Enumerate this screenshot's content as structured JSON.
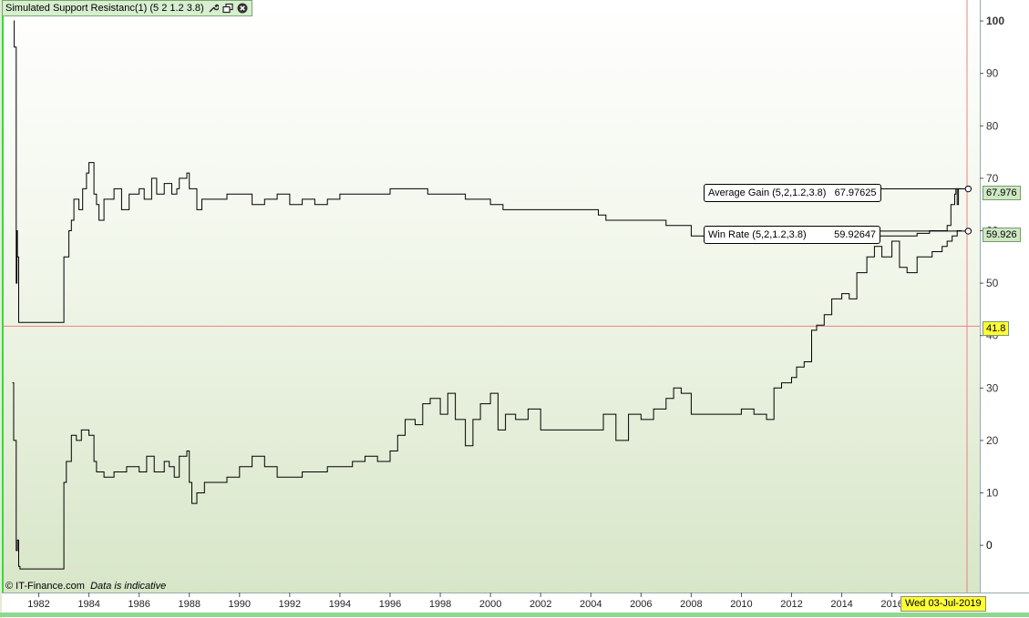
{
  "window": {
    "title": "Simulated Support Resistanc(1) (5 2 1.2 3.8)",
    "icons": [
      "wrench-icon",
      "restore-window-icon",
      "close-icon"
    ]
  },
  "credit": {
    "source": "© IT-Finance.com",
    "note": "Data is indicative"
  },
  "cursor_date": "Wed 03-Jul-2019",
  "price_level_badge": "41.8",
  "callouts": {
    "average_gain": {
      "label": "Average Gain (5,2,1.2,3.8)",
      "value": "67.97625"
    },
    "win_rate": {
      "label": "Win Rate (5,2,1.2,3.8)",
      "value": "59.92647"
    }
  },
  "badges": {
    "average_gain": "67.976",
    "win_rate": "59.926"
  },
  "colors": {
    "series": "#000000",
    "crosshair": "#f08080",
    "badge_yellow": "#ffff33",
    "badge_green": "#cfe8c4",
    "frame_green": "#3fd43f"
  },
  "chart_data": {
    "type": "line",
    "title": "Simulated Support Resistanc(1) (5 2 1.2 3.8)",
    "x_ticks": [
      "1982",
      "1984",
      "1986",
      "1988",
      "1990",
      "1992",
      "1994",
      "1996",
      "1998",
      "2000",
      "2002",
      "2004",
      "2006",
      "2008",
      "2010",
      "2012",
      "2014",
      "2016"
    ],
    "y_ticks": [
      "100",
      "90",
      "80",
      "70",
      "60",
      "50",
      "40",
      "30",
      "20",
      "10",
      "0"
    ],
    "ylim": [
      -9,
      104
    ],
    "xlim": [
      1980.6,
      2019.5
    ],
    "crosshair": {
      "x": 2019.5,
      "y": 41.8
    },
    "grid": false,
    "series": [
      {
        "name": "Average Gain (5,2,1.2,3.8)",
        "x": [
          1981.0,
          1981.02,
          1981.1,
          1981.13,
          1981.15,
          1981.2,
          1982.9,
          1983.0,
          1983.2,
          1983.3,
          1983.4,
          1983.6,
          1983.75,
          1983.9,
          1984.0,
          1984.2,
          1984.3,
          1984.4,
          1984.6,
          1985.0,
          1985.3,
          1985.6,
          1986.0,
          1986.2,
          1986.5,
          1986.7,
          1987.0,
          1987.3,
          1987.5,
          1987.6,
          1987.9,
          1988.0,
          1988.3,
          1988.5,
          1989.0,
          1989.5,
          1990.0,
          1990.5,
          1991.0,
          1991.5,
          1992.0,
          1992.5,
          1993.0,
          1993.5,
          1994.0,
          1995.0,
          1996.0,
          1996.5,
          1997.0,
          1997.5,
          1998.0,
          1999.0,
          2000.0,
          2000.5,
          2001.0,
          2001.5,
          2002.0,
          2003.0,
          2004.0,
          2004.3,
          2004.6,
          2005.0,
          2006.0,
          2007.0,
          2007.6,
          2008.0,
          2008.3,
          2009.0,
          2010.0,
          2011.0,
          2012.0,
          2013.0,
          2014.0,
          2015.0,
          2016.0,
          2017.0,
          2017.5,
          2018.0,
          2018.2,
          2018.35,
          2018.5,
          2018.55,
          2018.6,
          2018.65,
          2018.75
        ],
        "y": [
          100,
          95,
          50,
          60,
          55,
          42.5,
          42.5,
          55,
          60,
          62,
          66,
          64,
          68,
          71,
          73,
          67,
          65,
          62,
          66,
          68,
          64,
          67,
          68,
          66,
          70,
          67,
          69,
          67,
          68,
          70,
          71,
          68,
          64,
          66,
          66,
          67,
          67,
          65,
          66,
          67,
          65,
          66,
          65,
          66,
          67,
          67,
          68,
          68,
          68,
          67,
          67,
          66,
          65,
          64,
          64,
          64,
          64,
          64,
          64,
          63,
          62,
          62,
          62,
          61,
          61,
          59,
          59,
          59,
          58.5,
          58.5,
          58.5,
          58.5,
          58.5,
          59,
          59,
          59.5,
          60,
          60,
          61,
          65,
          67,
          68,
          65,
          68,
          67.976
        ]
      },
      {
        "name": "Win Rate (5,2,1.2,3.8)",
        "x": [
          1980.95,
          1981.0,
          1981.1,
          1981.15,
          1981.2,
          1981.25,
          1981.3,
          1982.9,
          1983.0,
          1983.1,
          1983.3,
          1983.5,
          1983.7,
          1984.0,
          1984.2,
          1984.3,
          1984.6,
          1985.0,
          1985.5,
          1986.0,
          1986.3,
          1986.6,
          1987.0,
          1987.2,
          1987.4,
          1987.6,
          1987.9,
          1988.0,
          1988.1,
          1988.3,
          1988.6,
          1989.0,
          1989.5,
          1990.0,
          1990.5,
          1991.0,
          1991.5,
          1992.0,
          1992.5,
          1993.0,
          1993.5,
          1994.0,
          1994.5,
          1995.0,
          1995.5,
          1996.0,
          1996.3,
          1996.6,
          1997.0,
          1997.3,
          1997.6,
          1998.0,
          1998.3,
          1998.6,
          1999.0,
          1999.3,
          1999.6,
          2000.0,
          2000.3,
          2000.6,
          2001.0,
          2001.5,
          2002.0,
          2003.0,
          2004.0,
          2004.5,
          2005.0,
          2005.5,
          2006.0,
          2006.5,
          2007.0,
          2007.3,
          2007.6,
          2008.0,
          2009.0,
          2010.0,
          2010.5,
          2011.0,
          2011.3,
          2011.6,
          2012.0,
          2012.2,
          2012.5,
          2012.8,
          2013.0,
          2013.3,
          2013.6,
          2014.0,
          2014.3,
          2014.6,
          2015.0,
          2015.3,
          2015.6,
          2016.0,
          2016.3,
          2016.6,
          2017.0,
          2017.3,
          2017.6,
          2018.0,
          2018.2,
          2018.4,
          2018.6,
          2018.75
        ],
        "y": [
          31,
          20,
          -1,
          1,
          -4,
          -4.5,
          -4.5,
          -4.5,
          12,
          16,
          21,
          20,
          22,
          21,
          16,
          14,
          13,
          14,
          15,
          14,
          17,
          14,
          16,
          15,
          13,
          17,
          18,
          12,
          8,
          10,
          12,
          12,
          13,
          15,
          17,
          15,
          13,
          13,
          14,
          14,
          15,
          15,
          16,
          17,
          16,
          18,
          21,
          24,
          23,
          27,
          28,
          25,
          29,
          24,
          19,
          24,
          27,
          29,
          22,
          25,
          24,
          26,
          22,
          22,
          22,
          25,
          20,
          25,
          24,
          26,
          28,
          30,
          29,
          25,
          25,
          26,
          25,
          24,
          30,
          31,
          32,
          34,
          35,
          41,
          42,
          44,
          47,
          48,
          47,
          52,
          55,
          57,
          55,
          58,
          53,
          52,
          55,
          55,
          56,
          57,
          58,
          59,
          60,
          59.926
        ]
      }
    ]
  }
}
